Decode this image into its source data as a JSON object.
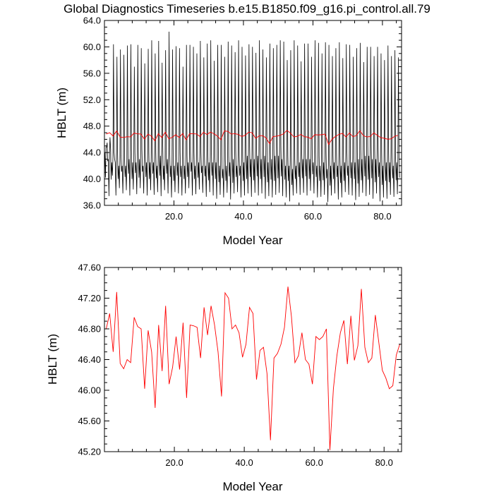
{
  "figure": {
    "title": "Global Diagnostics Timeseries b.e15.B1850.f09_g16.pi_control.all.79"
  },
  "chart_data": [
    {
      "type": "line",
      "title": "Global Diagnostics Timeseries b.e15.B1850.f09_g16.pi_control.all.79",
      "xlabel": "Model Year",
      "ylabel": "HBLT (m)",
      "xlim": [
        0,
        85.5
      ],
      "ylim": [
        36.0,
        64.0
      ],
      "xticks": [
        20.0,
        40.0,
        60.0,
        80.0
      ],
      "xtick_labels": [
        "20.0",
        "40.0",
        "60.0",
        "80.0"
      ],
      "yticks": [
        36.0,
        40.0,
        44.0,
        48.0,
        52.0,
        56.0,
        60.0,
        64.0
      ],
      "ytick_labels": [
        "36.0",
        "40.0",
        "44.0",
        "48.0",
        "52.0",
        "56.0",
        "60.0",
        "64.0"
      ],
      "grid": false,
      "series": [
        {
          "color": "#000000",
          "style": "monthly",
          "summer_peak": [
            44.8,
            46.3,
            60.4,
            58.5,
            59.6,
            58.8,
            60.2,
            60.4,
            57.0,
            60.3,
            59.8,
            57.5,
            59.7,
            61.0,
            59.0,
            60.9,
            57.6,
            59.5,
            62.3,
            59.6,
            60.1,
            59.8,
            57.0,
            60.3,
            60.3,
            60.0,
            59.0,
            60.9,
            58.4,
            60.5,
            61.0,
            57.9,
            60.3,
            60.3,
            58.5,
            60.8,
            60.2,
            59.2,
            61.0,
            60.0,
            58.7,
            60.4,
            60.0,
            59.1,
            61.0,
            59.6,
            58.4,
            60.5,
            59.8,
            60.3,
            61.0,
            60.8,
            58.0,
            59.5,
            61.0,
            60.2,
            57.8,
            60.5,
            60.5,
            58.5,
            61.0,
            60.6,
            59.0,
            60.7,
            60.3,
            58.6,
            59.8,
            60.7,
            58.3,
            60.4,
            60.3,
            58.5,
            59.8,
            60.6,
            57.7,
            60.0,
            60.0,
            58.6,
            60.0,
            59.0,
            58.0,
            60.2,
            58.6,
            59.5,
            58.4
          ],
          "winter_min": [
            40.2,
            37.4,
            40.5,
            37.5,
            38.6,
            37.8,
            38.3,
            37.5,
            38.4,
            37.7,
            38.6,
            37.8,
            37.5,
            38.3,
            37.6,
            38.0,
            37.4,
            38.3,
            37.8,
            37.2,
            38.0,
            37.8,
            37.5,
            37.8,
            38.6,
            37.5,
            37.7,
            38.4,
            37.9,
            37.3,
            38.0,
            37.5,
            37.0,
            37.6,
            37.2,
            37.9,
            36.9,
            37.8,
            38.0,
            37.2,
            37.5,
            37.8,
            37.3,
            37.9,
            37.5,
            37.8,
            37.0,
            37.4,
            37.2,
            37.6,
            37.9,
            37.4,
            37.2,
            36.6,
            37.5,
            37.8,
            37.6,
            37.9,
            37.5,
            38.2,
            37.8,
            37.2,
            37.3,
            37.6,
            36.5,
            37.5,
            37.8,
            36.9,
            37.2,
            38.0,
            37.6,
            37.5,
            36.8,
            37.3,
            37.9,
            37.4,
            37.6,
            37.0,
            37.8,
            36.6,
            37.2,
            37.0,
            37.6,
            37.3,
            37.7
          ],
          "trough_mid": [
            44.0,
            43.0,
            42.5,
            42.5,
            42.0,
            42.0,
            42.0,
            43.0,
            42.5,
            42.5,
            43.0,
            42.0,
            42.5,
            42.5,
            42.5,
            42.0,
            43.5,
            42.0,
            43.0,
            42.0,
            42.0,
            42.5,
            42.0,
            42.0,
            42.5,
            42.5,
            42.0,
            42.5,
            42.0,
            42.0,
            42.5,
            42.5,
            42.5,
            42.0,
            41.5,
            42.0,
            42.5,
            43.0,
            42.0,
            42.0,
            42.5,
            43.5,
            43.0,
            43.0,
            43.5,
            43.0,
            43.5,
            42.5,
            43.0,
            43.5,
            43.5,
            43.0,
            42.0,
            42.0,
            41.5,
            42.0,
            42.5,
            43.0,
            43.0,
            43.0,
            42.5,
            42.0,
            42.0,
            42.5,
            41.5,
            42.0,
            42.5,
            42.0,
            42.0,
            42.5,
            42.0,
            42.5,
            42.5,
            43.0,
            43.0,
            43.5,
            43.5,
            43.0,
            43.0,
            42.5,
            42.0,
            42.5,
            42.5,
            42.0,
            42.5
          ]
        },
        {
          "color": "#ff0000",
          "style": "annual",
          "values": [
            46.8,
            47.0,
            46.5,
            47.28,
            46.35,
            46.28,
            46.4,
            46.36,
            46.95,
            46.83,
            46.8,
            46.02,
            46.78,
            46.5,
            45.77,
            46.85,
            46.25,
            47.1,
            46.08,
            46.3,
            46.7,
            46.27,
            46.88,
            45.9,
            46.85,
            46.84,
            46.82,
            46.42,
            47.08,
            46.72,
            47.1,
            46.85,
            46.5,
            45.92,
            47.27,
            47.2,
            46.8,
            46.85,
            46.75,
            46.43,
            46.6,
            47.08,
            47.0,
            46.14,
            46.52,
            46.56,
            46.22,
            45.35,
            46.42,
            46.48,
            46.6,
            46.82,
            47.35,
            46.96,
            46.36,
            46.45,
            46.75,
            46.4,
            46.34,
            46.08,
            46.7,
            46.66,
            46.7,
            46.8,
            45.22,
            46.02,
            46.45,
            46.75,
            46.91,
            46.34,
            46.97,
            46.39,
            46.58,
            47.32,
            46.56,
            46.36,
            46.42,
            46.98,
            46.62,
            46.26,
            46.16,
            46.02,
            46.06,
            46.46,
            46.6
          ]
        }
      ]
    },
    {
      "type": "line",
      "title": "",
      "xlabel": "Model Year",
      "ylabel": "HBLT (m)",
      "xlim": [
        0,
        85.0
      ],
      "ylim": [
        45.2,
        47.6
      ],
      "xticks": [
        20.0,
        40.0,
        60.0,
        80.0
      ],
      "xtick_labels": [
        "20.0",
        "40.0",
        "60.0",
        "80.0"
      ],
      "yticks": [
        45.2,
        45.6,
        46.0,
        46.4,
        46.8,
        47.2,
        47.6
      ],
      "ytick_labels": [
        "45.20",
        "45.60",
        "46.00",
        "46.40",
        "46.80",
        "47.20",
        "47.60"
      ],
      "grid": false,
      "series": [
        {
          "color": "#ff0000",
          "style": "annual",
          "values": [
            46.8,
            47.0,
            46.5,
            47.28,
            46.35,
            46.28,
            46.4,
            46.36,
            46.95,
            46.83,
            46.8,
            46.02,
            46.78,
            46.5,
            45.77,
            46.85,
            46.25,
            47.1,
            46.08,
            46.3,
            46.7,
            46.27,
            46.88,
            45.9,
            46.85,
            46.84,
            46.82,
            46.42,
            47.08,
            46.72,
            47.1,
            46.85,
            46.5,
            45.92,
            47.27,
            47.2,
            46.8,
            46.85,
            46.75,
            46.43,
            46.6,
            47.08,
            47.0,
            46.14,
            46.52,
            46.56,
            46.22,
            45.35,
            46.42,
            46.48,
            46.6,
            46.82,
            47.35,
            46.96,
            46.36,
            46.45,
            46.75,
            46.4,
            46.34,
            46.08,
            46.7,
            46.66,
            46.7,
            46.8,
            45.22,
            46.02,
            46.45,
            46.75,
            46.91,
            46.34,
            46.97,
            46.39,
            46.58,
            47.32,
            46.56,
            46.36,
            46.42,
            46.98,
            46.62,
            46.26,
            46.16,
            46.02,
            46.06,
            46.46,
            46.6
          ]
        }
      ]
    }
  ]
}
